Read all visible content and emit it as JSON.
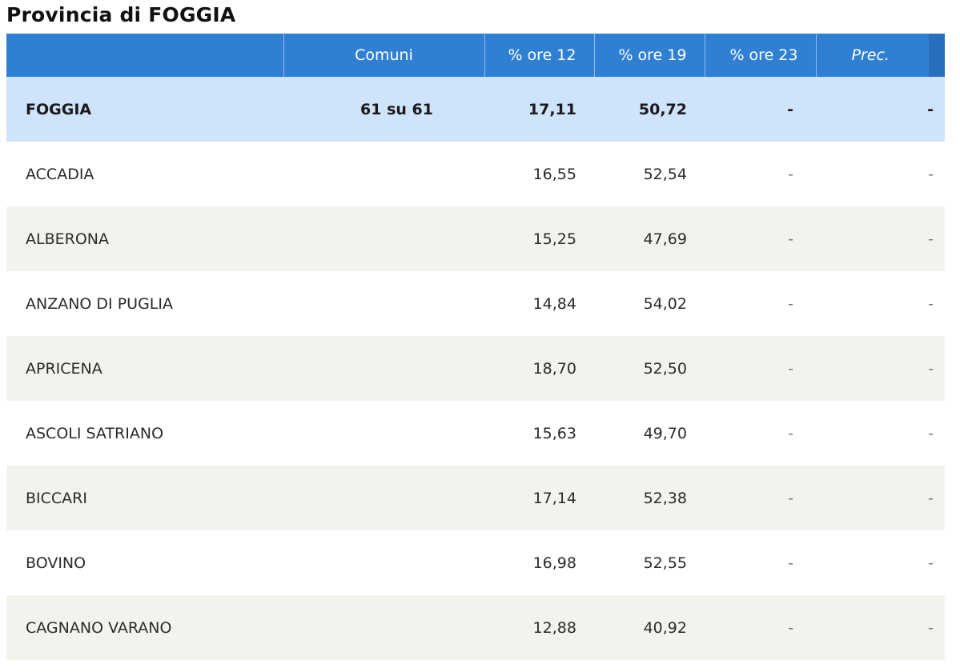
{
  "page_title": "Provincia di FOGGIA",
  "table": {
    "headers": [
      "",
      "Comuni",
      "% ore 12",
      "% ore 19",
      "% ore 23",
      "Prec."
    ],
    "summary": {
      "name": "FOGGIA",
      "comuni": "61 su 61",
      "ore12": "17,11",
      "ore19": "50,72",
      "ore23": "-",
      "prec": "-"
    },
    "rows": [
      {
        "name": "ACCADIA",
        "ore12": "16,55",
        "ore19": "52,54",
        "ore23": "-",
        "prec": "-"
      },
      {
        "name": "ALBERONA",
        "ore12": "15,25",
        "ore19": "47,69",
        "ore23": "-",
        "prec": "-"
      },
      {
        "name": "ANZANO DI PUGLIA",
        "ore12": "14,84",
        "ore19": "54,02",
        "ore23": "-",
        "prec": "-"
      },
      {
        "name": "APRICENA",
        "ore12": "18,70",
        "ore19": "52,50",
        "ore23": "-",
        "prec": "-"
      },
      {
        "name": "ASCOLI SATRIANO",
        "ore12": "15,63",
        "ore19": "49,70",
        "ore23": "-",
        "prec": "-"
      },
      {
        "name": "BICCARI",
        "ore12": "17,14",
        "ore19": "52,38",
        "ore23": "-",
        "prec": "-"
      },
      {
        "name": "BOVINO",
        "ore12": "16,98",
        "ore19": "52,55",
        "ore23": "-",
        "prec": "-"
      },
      {
        "name": "CAGNANO VARANO",
        "ore12": "12,88",
        "ore19": "40,92",
        "ore23": "-",
        "prec": "-"
      }
    ]
  },
  "colors": {
    "header_bg": "#2f7fd3",
    "summary_bg": "#cfe3fb",
    "alt_row_bg": "#f3f3ee"
  }
}
